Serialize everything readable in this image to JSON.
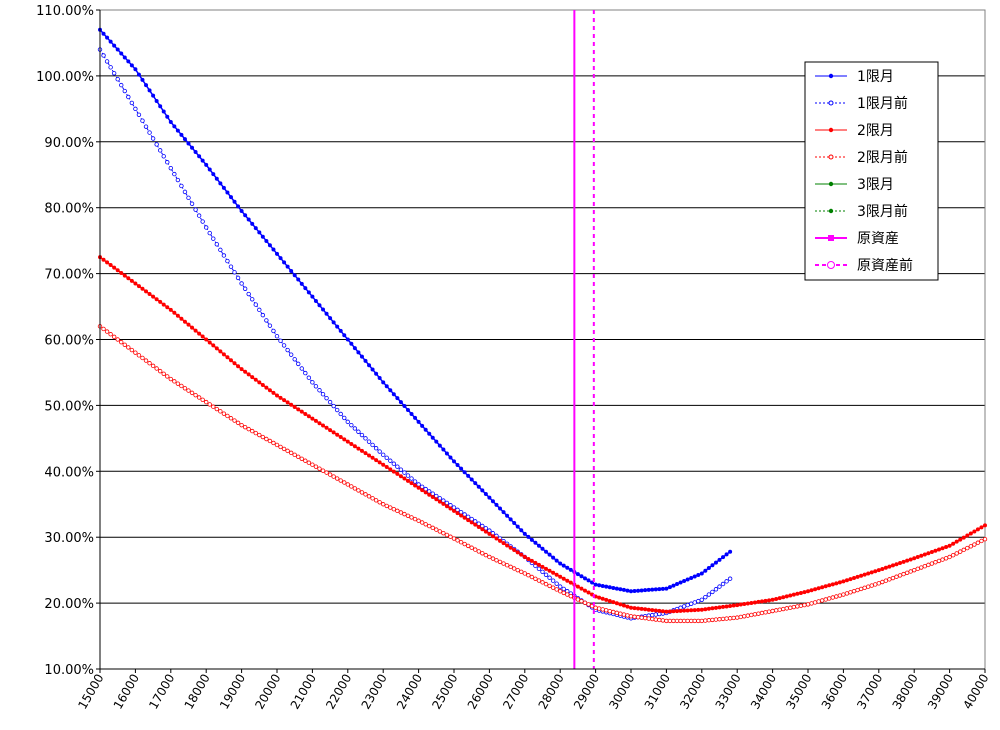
{
  "chart_data": {
    "type": "line",
    "title": "",
    "xlabel": "",
    "ylabel": "",
    "xlim": [
      15000,
      40000
    ],
    "ylim": [
      0.1,
      1.1
    ],
    "x_ticks": [
      15000,
      16000,
      17000,
      18000,
      19000,
      20000,
      21000,
      22000,
      23000,
      24000,
      25000,
      26000,
      27000,
      28000,
      29000,
      30000,
      31000,
      32000,
      33000,
      34000,
      35000,
      36000,
      37000,
      38000,
      39000,
      40000
    ],
    "y_ticks": [
      0.1,
      0.2,
      0.3,
      0.4,
      0.5,
      0.6,
      0.7,
      0.8,
      0.9,
      1.0,
      1.1
    ],
    "y_tick_labels": [
      "10.00%",
      "20.00%",
      "30.00%",
      "40.00%",
      "50.00%",
      "60.00%",
      "70.00%",
      "80.00%",
      "90.00%",
      "100.00%",
      "110.00%"
    ],
    "grid": "horizontal",
    "legend_position": "top-right",
    "series": [
      {
        "name": "1限月",
        "color": "#0000ff",
        "style": "solid",
        "marker": "filled",
        "points": [
          [
            15000,
            1.07
          ],
          [
            16000,
            1.01
          ],
          [
            17000,
            0.93
          ],
          [
            18000,
            0.865
          ],
          [
            19000,
            0.795
          ],
          [
            20000,
            0.73
          ],
          [
            21000,
            0.665
          ],
          [
            22000,
            0.6
          ],
          [
            23000,
            0.535
          ],
          [
            24000,
            0.475
          ],
          [
            25000,
            0.415
          ],
          [
            26000,
            0.36
          ],
          [
            27000,
            0.305
          ],
          [
            28000,
            0.26
          ],
          [
            29000,
            0.228
          ],
          [
            30000,
            0.218
          ],
          [
            31000,
            0.222
          ],
          [
            32000,
            0.245
          ],
          [
            32800,
            0.278
          ]
        ]
      },
      {
        "name": "1限月前",
        "color": "#0000ff",
        "style": "dotted",
        "marker": "hollow",
        "points": [
          [
            15000,
            1.04
          ],
          [
            16000,
            0.95
          ],
          [
            17000,
            0.86
          ],
          [
            18000,
            0.77
          ],
          [
            19000,
            0.685
          ],
          [
            20000,
            0.605
          ],
          [
            21000,
            0.535
          ],
          [
            22000,
            0.475
          ],
          [
            23000,
            0.425
          ],
          [
            24000,
            0.38
          ],
          [
            25000,
            0.345
          ],
          [
            26000,
            0.31
          ],
          [
            27000,
            0.27
          ],
          [
            28000,
            0.225
          ],
          [
            29000,
            0.19
          ],
          [
            30000,
            0.177
          ],
          [
            31000,
            0.185
          ],
          [
            32000,
            0.205
          ],
          [
            32800,
            0.237
          ]
        ]
      },
      {
        "name": "2限月",
        "color": "#ff0000",
        "style": "solid",
        "marker": "filled",
        "points": [
          [
            15000,
            0.725
          ],
          [
            16000,
            0.685
          ],
          [
            17000,
            0.645
          ],
          [
            18000,
            0.6
          ],
          [
            19000,
            0.555
          ],
          [
            20000,
            0.515
          ],
          [
            21000,
            0.48
          ],
          [
            22000,
            0.445
          ],
          [
            23000,
            0.41
          ],
          [
            24000,
            0.375
          ],
          [
            25000,
            0.34
          ],
          [
            26000,
            0.305
          ],
          [
            27000,
            0.27
          ],
          [
            28000,
            0.24
          ],
          [
            29000,
            0.21
          ],
          [
            30000,
            0.193
          ],
          [
            31000,
            0.187
          ],
          [
            32000,
            0.19
          ],
          [
            33000,
            0.197
          ],
          [
            34000,
            0.205
          ],
          [
            35000,
            0.218
          ],
          [
            36000,
            0.233
          ],
          [
            37000,
            0.25
          ],
          [
            38000,
            0.268
          ],
          [
            39000,
            0.287
          ],
          [
            40000,
            0.318
          ]
        ]
      },
      {
        "name": "2限月前",
        "color": "#ff0000",
        "style": "dotted",
        "marker": "hollow",
        "points": [
          [
            15000,
            0.62
          ],
          [
            16000,
            0.58
          ],
          [
            17000,
            0.54
          ],
          [
            18000,
            0.505
          ],
          [
            19000,
            0.47
          ],
          [
            20000,
            0.44
          ],
          [
            21000,
            0.41
          ],
          [
            22000,
            0.38
          ],
          [
            23000,
            0.35
          ],
          [
            24000,
            0.325
          ],
          [
            25000,
            0.298
          ],
          [
            26000,
            0.27
          ],
          [
            27000,
            0.245
          ],
          [
            28000,
            0.218
          ],
          [
            29000,
            0.193
          ],
          [
            30000,
            0.18
          ],
          [
            31000,
            0.173
          ],
          [
            32000,
            0.173
          ],
          [
            33000,
            0.178
          ],
          [
            34000,
            0.188
          ],
          [
            35000,
            0.198
          ],
          [
            36000,
            0.213
          ],
          [
            37000,
            0.23
          ],
          [
            38000,
            0.25
          ],
          [
            39000,
            0.27
          ],
          [
            40000,
            0.297
          ]
        ]
      },
      {
        "name": "3限月",
        "color": "#008000",
        "style": "solid",
        "marker": "filled",
        "points": []
      },
      {
        "name": "3限月前",
        "color": "#008000",
        "style": "dotted",
        "marker": "filled",
        "points": []
      },
      {
        "name": "原資産",
        "color": "#ff00ff",
        "style": "solid",
        "marker": "filled-square",
        "vertical_x": 28400
      },
      {
        "name": "原資産前",
        "color": "#ff00ff",
        "style": "dashed",
        "marker": "hollow",
        "vertical_x": 28950
      }
    ]
  }
}
